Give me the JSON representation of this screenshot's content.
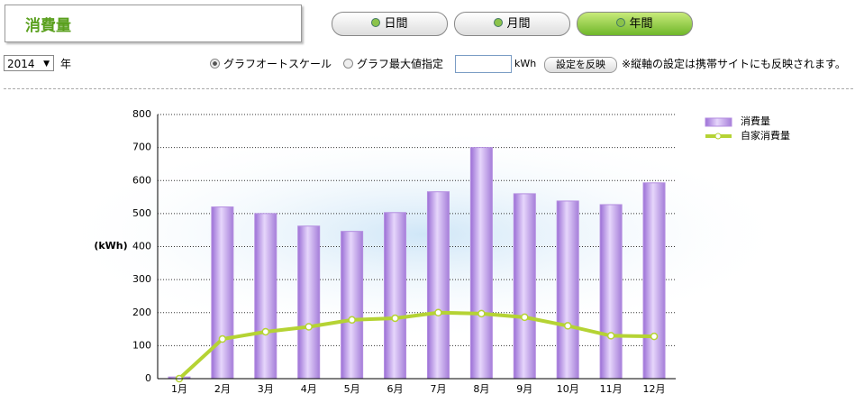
{
  "header": {
    "title": "消費量"
  },
  "tabs": [
    "日間",
    "月間",
    "年間"
  ],
  "controls": {
    "year": "2014",
    "year_unit": "年",
    "radio_auto": "グラフオートスケール",
    "radio_max": "グラフ最大値指定",
    "unit": "kWh",
    "apply_button": "設定を反映",
    "note": "※縦軸の設定は携帯サイトにも反映されます。"
  },
  "chart_data": {
    "type": "bar",
    "ylabel": "(kWh)",
    "categories": [
      "1月",
      "2月",
      "3月",
      "4月",
      "5月",
      "6月",
      "7月",
      "8月",
      "9月",
      "10月",
      "11月",
      "12月"
    ],
    "series": [
      {
        "name": "消費量",
        "type": "bar",
        "color": "#b48ee0",
        "values": [
          5,
          520,
          500,
          462,
          446,
          503,
          566,
          700,
          560,
          538,
          527,
          593
        ]
      },
      {
        "name": "自家消費量",
        "type": "line",
        "color": "#b5d334",
        "values": [
          0,
          120,
          142,
          157,
          178,
          183,
          200,
          197,
          186,
          160,
          130,
          128
        ]
      }
    ],
    "ylim": [
      0,
      800
    ],
    "yticks": [
      0,
      100,
      200,
      300,
      400,
      500,
      600,
      700,
      800
    ],
    "grid": true
  }
}
